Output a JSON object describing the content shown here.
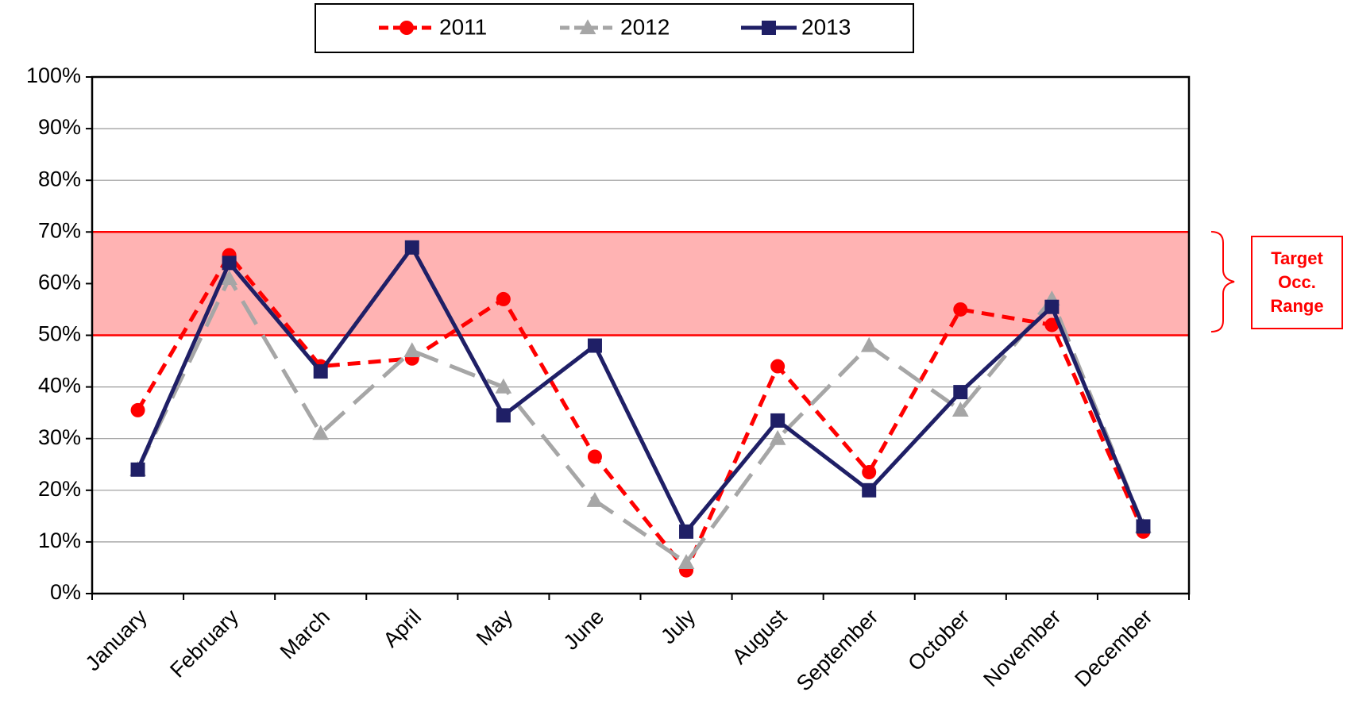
{
  "chart_data": {
    "type": "line",
    "categories": [
      "January",
      "February",
      "March",
      "April",
      "May",
      "June",
      "July",
      "August",
      "September",
      "October",
      "November",
      "December"
    ],
    "series": [
      {
        "name": "2011",
        "color": "#ff0000",
        "dash": "dashed",
        "marker": "circle",
        "values": [
          35.5,
          65.5,
          44,
          45.5,
          57,
          26.5,
          4.5,
          44,
          23.5,
          55,
          52,
          12
        ]
      },
      {
        "name": "2012",
        "color": "#a6a6a6",
        "dash": "long-dash",
        "marker": "triangle",
        "values": [
          24,
          61,
          31,
          47,
          40,
          18,
          6,
          30,
          48,
          35.5,
          57,
          13
        ]
      },
      {
        "name": "2013",
        "color": "#1f1f66",
        "dash": "solid",
        "marker": "square",
        "values": [
          24,
          64,
          43,
          67,
          34.5,
          48,
          12,
          33.5,
          20,
          39,
          55.5,
          13
        ]
      }
    ],
    "ylim": [
      0,
      100
    ],
    "yticks": [
      {
        "value": 0,
        "label": "0%"
      },
      {
        "value": 10,
        "label": "10%"
      },
      {
        "value": 20,
        "label": "20%"
      },
      {
        "value": 30,
        "label": "30%"
      },
      {
        "value": 40,
        "label": "40%"
      },
      {
        "value": 50,
        "label": "50%"
      },
      {
        "value": 60,
        "label": "60%"
      },
      {
        "value": 70,
        "label": "70%"
      },
      {
        "value": 80,
        "label": "80%"
      },
      {
        "value": 90,
        "label": "90%"
      },
      {
        "value": 100,
        "label": "100%"
      }
    ],
    "grid": true,
    "legend": "top",
    "target_range": [
      50,
      70
    ],
    "annotation": [
      "Target",
      "Occ.",
      "Range"
    ]
  }
}
